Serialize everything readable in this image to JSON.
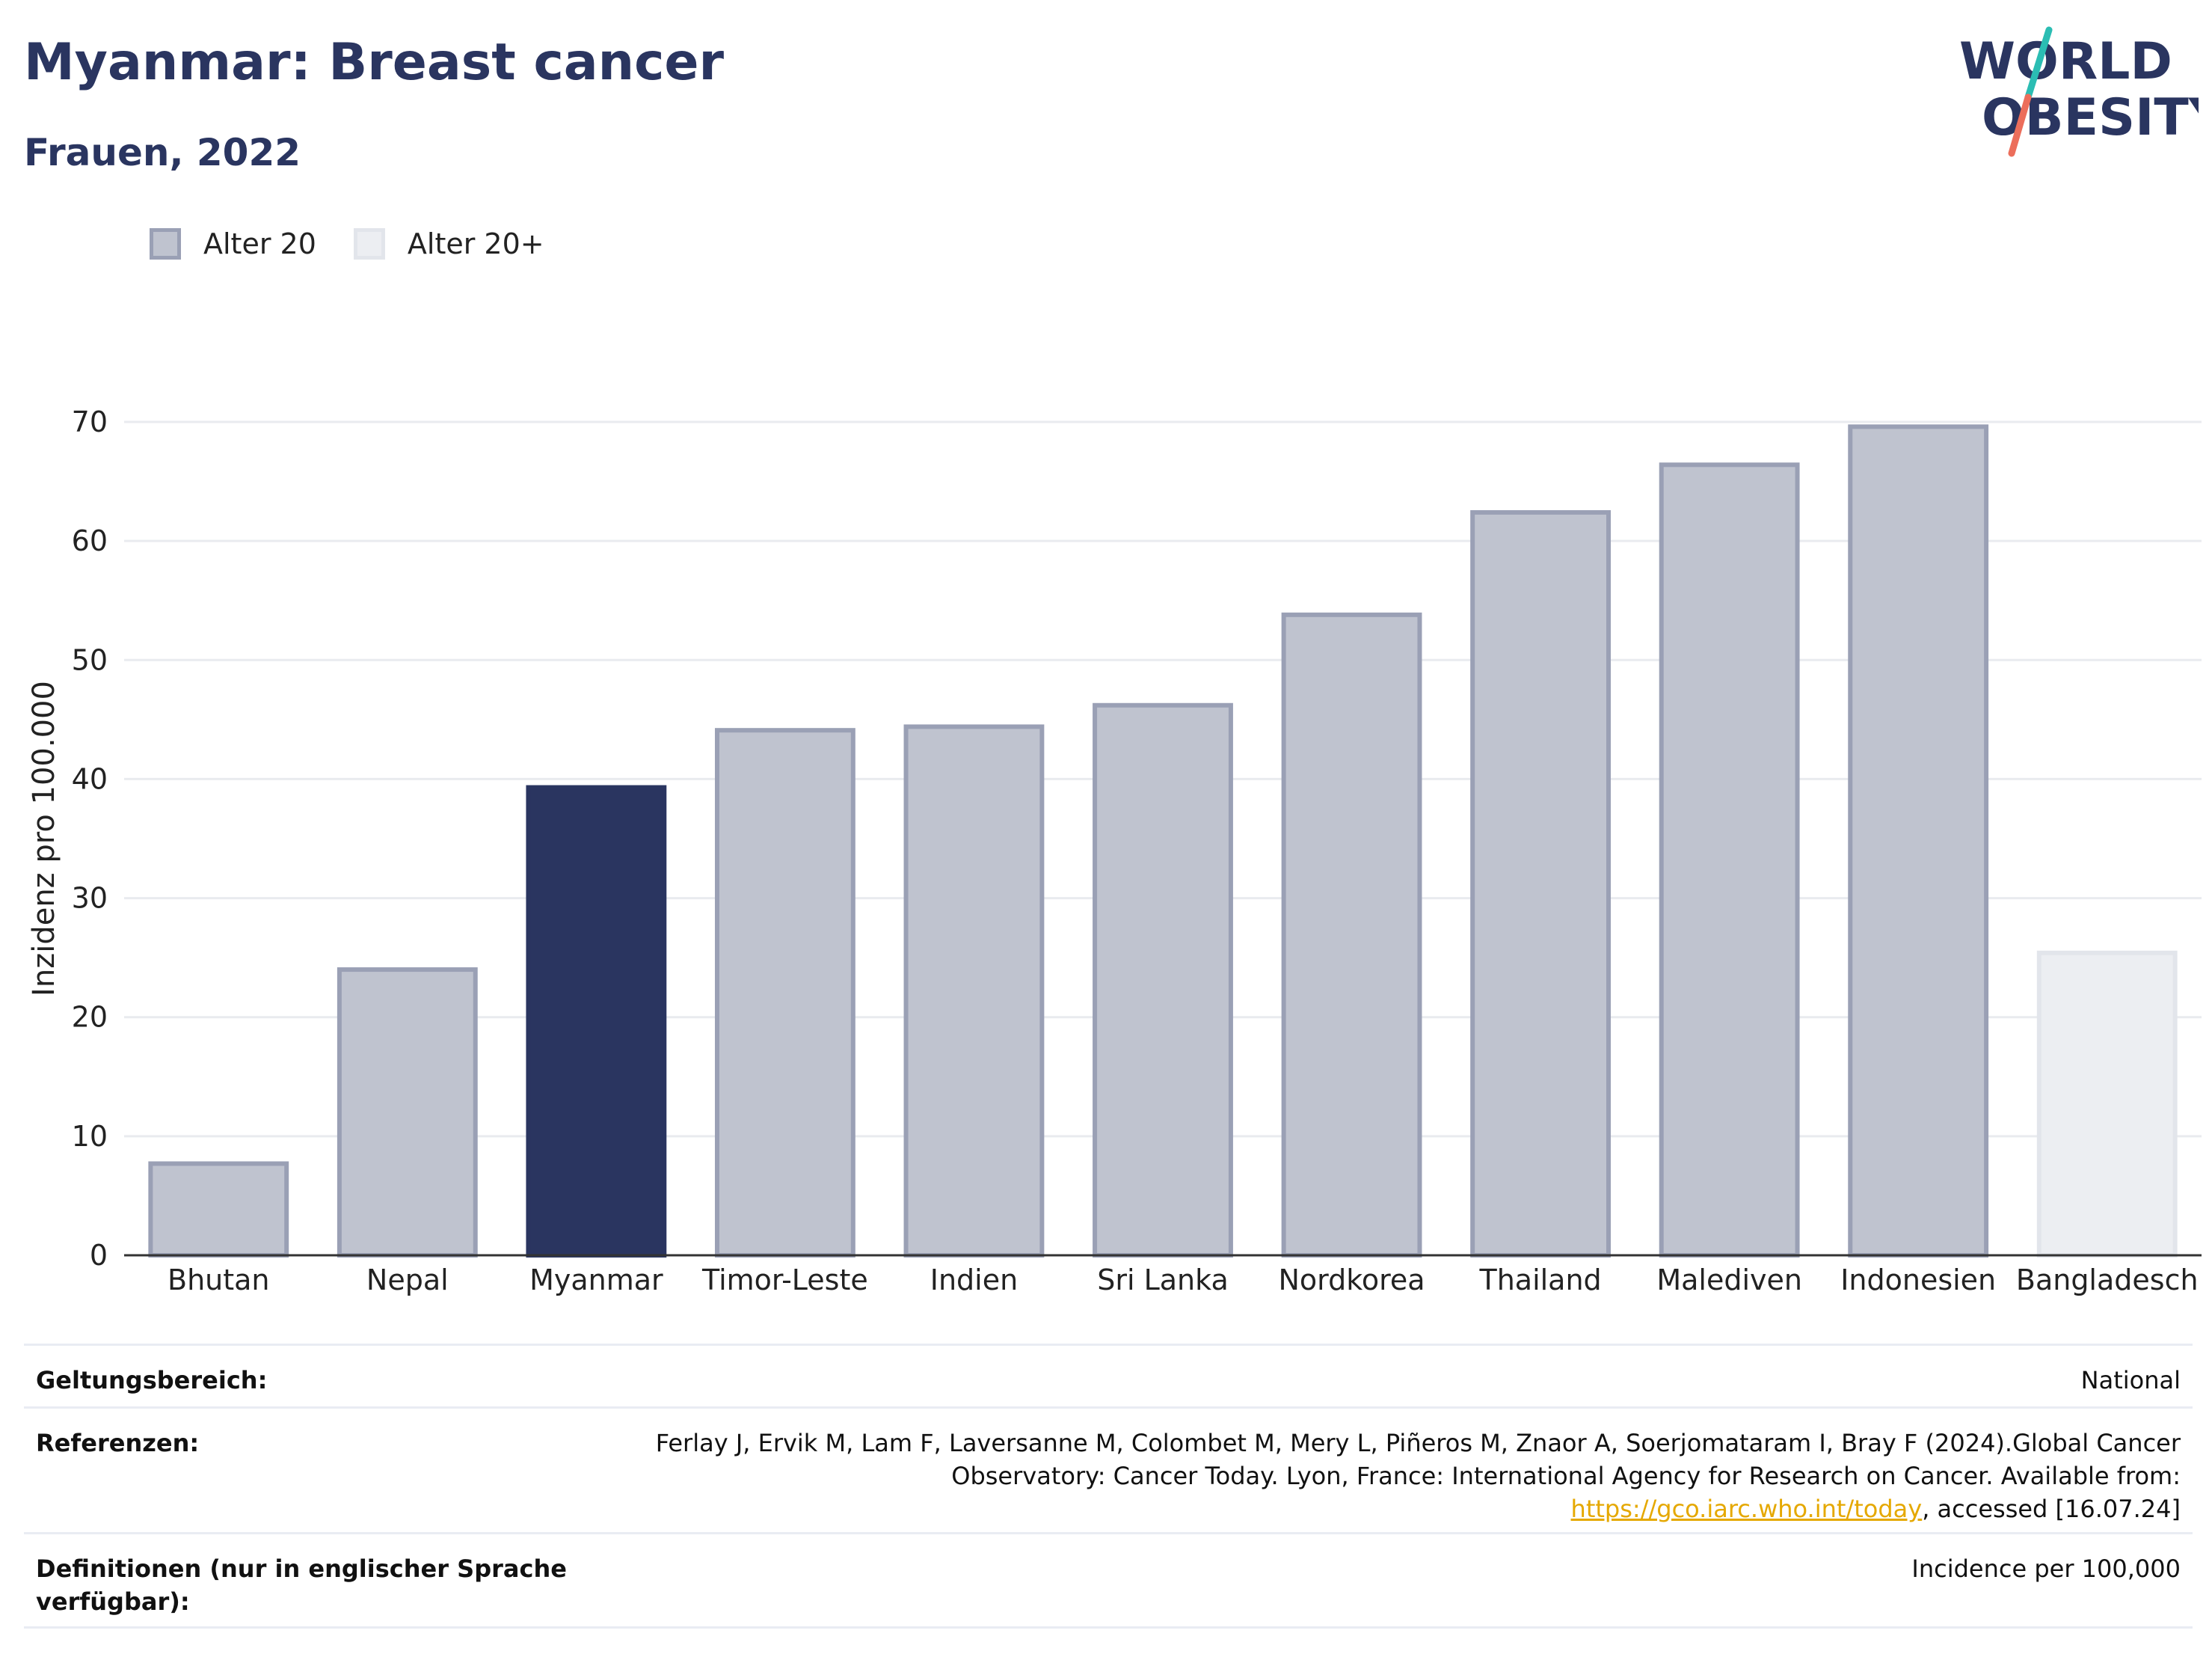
{
  "header": {
    "title": "Myanmar: Breast cancer",
    "subtitle": "Frauen, 2022"
  },
  "logo": {
    "line1": "WORLD",
    "line2": "OBESITY"
  },
  "legend": [
    {
      "label": "Alter 20",
      "fill": "#bfc3cf",
      "border": "#9aa0b5"
    },
    {
      "label": "Alter 20+",
      "fill": "#eceef2",
      "border": "#e2e5eb"
    }
  ],
  "chart_data": {
    "type": "bar",
    "ylabel": "Inzidenz pro 100.000",
    "ylim": [
      0,
      70
    ],
    "yticks": [
      0,
      10,
      20,
      30,
      40,
      50,
      60,
      70
    ],
    "grid": true,
    "categories": [
      "Bhutan",
      "Nepal",
      "Myanmar",
      "Timor-Leste",
      "Indien",
      "Sri Lanka",
      "Nordkorea",
      "Thailand",
      "Malediven",
      "Indonesien",
      "Bangladesch"
    ],
    "values": [
      7.7,
      24.0,
      39.3,
      44.1,
      44.4,
      46.2,
      53.8,
      62.4,
      66.4,
      69.6,
      25.4
    ],
    "groups": [
      "Alter 20",
      "Alter 20",
      "Alter 20",
      "Alter 20",
      "Alter 20",
      "Alter 20",
      "Alter 20",
      "Alter 20",
      "Alter 20",
      "Alter 20",
      "Alter 20+"
    ],
    "highlight": "Myanmar",
    "colors": {
      "highlight": "#2a3560",
      "Alter 20": {
        "fill": "#bfc3cf",
        "border": "#9aa0b5"
      },
      "Alter 20+": {
        "fill": "#eceef2",
        "border": "#e2e5eb"
      },
      "grid": "#e9ebef",
      "axis": "#333333"
    }
  },
  "meta": {
    "scope_label": "Geltungsbereich:",
    "scope_value": "National",
    "refs_label": "Referenzen:",
    "refs_text": "Ferlay J, Ervik M, Lam F, Laversanne M, Colombet M, Mery L, Piñeros M, Znaor A, Soerjomataram I, Bray F (2024).Global Cancer Observatory: Cancer Today. Lyon, France: International Agency for Research on Cancer. Available from: ",
    "refs_link": "https://gco.iarc.who.int/today",
    "refs_suffix": ", accessed [16.07.24]",
    "defs_label": "Definitionen (nur in englischer Sprache verfügbar):",
    "defs_value": "Incidence per 100,000"
  }
}
